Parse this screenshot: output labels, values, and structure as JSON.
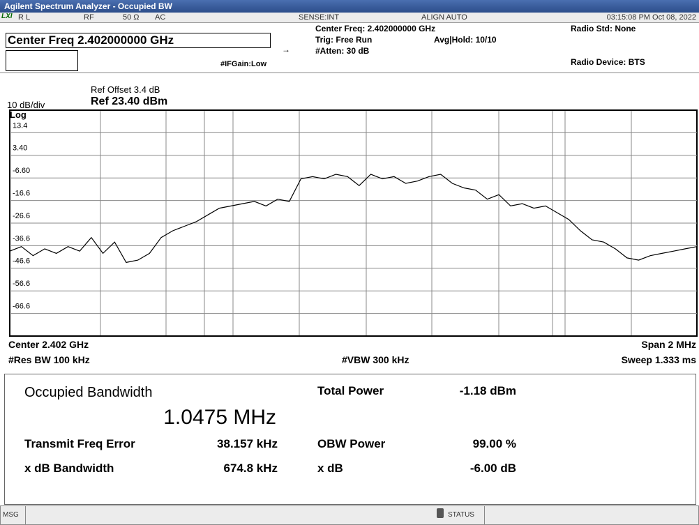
{
  "title_bar": "Agilent Spectrum Analyzer - Occupied BW",
  "status_row": {
    "lxi": "LXI",
    "rl": "R L",
    "rf": "RF",
    "impedance": "50 Ω",
    "coupling": "AC",
    "sense": "SENSE:INT",
    "align": "ALIGN AUTO",
    "timestamp": "03:15:08 PM Oct 08, 2022"
  },
  "header": {
    "center_freq_box": "Center Freq 2.402000000 GHz",
    "center_freq": "Center Freq: 2.402000000 GHz",
    "trig": "Trig: Free Run",
    "avg_hold": "Avg|Hold: 10/10",
    "atten": "#Atten: 30 dB",
    "if_gain": "#IFGain:Low",
    "radio_std": "Radio Std: None",
    "radio_device": "Radio Device: BTS"
  },
  "plot": {
    "ref_offset": "Ref Offset 3.4 dB",
    "scale": "10 dB/div",
    "ref_level": "Ref 23.40 dBm",
    "log": "Log",
    "ylim": [
      -76.6,
      23.4
    ],
    "yticks": [
      13.4,
      {
        "value": 3.4,
        "label": "3.40"
      },
      {
        "value": -6.6,
        "label": "-6.60"
      },
      -16.6,
      -26.6,
      -36.6,
      -46.6,
      -56.6,
      -66.6
    ],
    "trace": [
      -39,
      -37,
      -41,
      -38,
      -40,
      -37,
      -39,
      -33,
      -40,
      -35,
      -44,
      -43,
      -40,
      -33,
      -30,
      -28,
      -26,
      -23,
      -20,
      -19,
      -18,
      -17,
      -19,
      -16,
      -17,
      -7,
      -6,
      -7,
      -5,
      -6,
      -10,
      -5,
      -7,
      -6,
      -9,
      -8,
      -6,
      -5,
      -9,
      -11,
      -12,
      -16,
      -14,
      -19,
      -18,
      -20,
      -19,
      -22,
      -25,
      -30,
      -34,
      -35,
      -38,
      -42,
      -43,
      -41,
      -40,
      -39,
      -38,
      -37
    ]
  },
  "footer": {
    "center": "Center  2.402 GHz",
    "span": "Span 2 MHz",
    "res_bw": "#Res BW  100 kHz",
    "vbw": "#VBW  300 kHz",
    "sweep": "Sweep  1.333 ms"
  },
  "results": {
    "obw_label": "Occupied Bandwidth",
    "obw_value": "1.0475 MHz",
    "total_power_label": "Total Power",
    "total_power_value": "-1.18 dBm",
    "tfe_label": "Transmit Freq Error",
    "tfe_value": "38.157 kHz",
    "obw_power_label": "OBW Power",
    "obw_power_value": "99.00 %",
    "xdb_bw_label": "x dB Bandwidth",
    "xdb_bw_value": "674.8 kHz",
    "xdb_label": "x dB",
    "xdb_value": "-6.00 dB"
  },
  "status_bar": {
    "msg": "MSG",
    "status": "STATUS"
  }
}
